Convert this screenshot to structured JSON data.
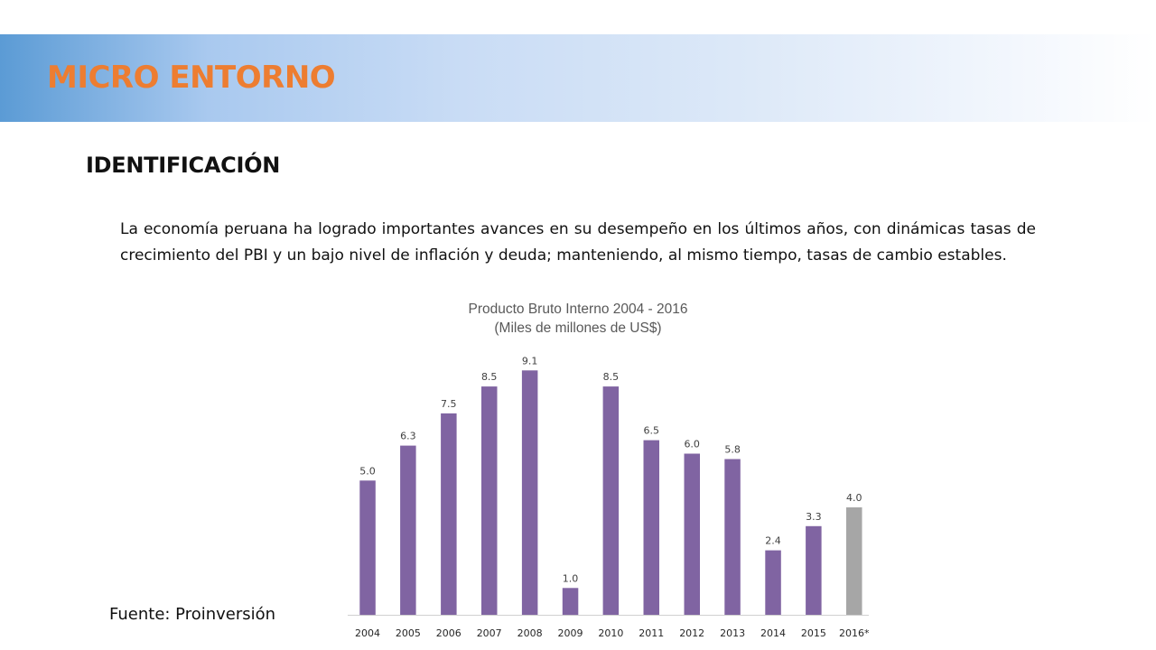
{
  "slide": {
    "title": "MICRO ENTORNO",
    "section_heading": "IDENTIFICACIÓN",
    "body_text": "La economía peruana ha logrado importantes avances en su desempeño en los últimos años, con dinámicas tasas de crecimiento del PBI y un bajo nivel de inflación y deuda; manteniendo, al mismo tiempo, tasas de cambio estables.",
    "source_note": "Fuente: Proinversión",
    "title_color": "#ed7d31"
  },
  "chart_data": {
    "type": "bar",
    "title": "Producto Bruto Interno 2004 - 2016",
    "subtitle": "(Miles de millones de US$)",
    "categories": [
      "2004",
      "2005",
      "2006",
      "2007",
      "2008",
      "2009",
      "2010",
      "2011",
      "2012",
      "2013",
      "2014",
      "2015",
      "2016*"
    ],
    "values": [
      5.0,
      6.3,
      7.5,
      8.5,
      9.1,
      1.0,
      8.5,
      6.5,
      6.0,
      5.8,
      2.4,
      3.3,
      4.0
    ],
    "data_labels": [
      "5.0",
      "6.3",
      "7.5",
      "8.5",
      "9.1",
      "1.0",
      "8.5",
      "6.5",
      "6.0",
      "5.8",
      "2.4",
      "3.3",
      "4.0"
    ],
    "xlabel": "",
    "ylabel": "",
    "ylim": [
      0,
      10
    ],
    "grid": false,
    "legend": "none",
    "bar_color": "#8064a2",
    "highlight_color": "#a6a6a6",
    "highlight_categories": [
      "2016*"
    ]
  }
}
